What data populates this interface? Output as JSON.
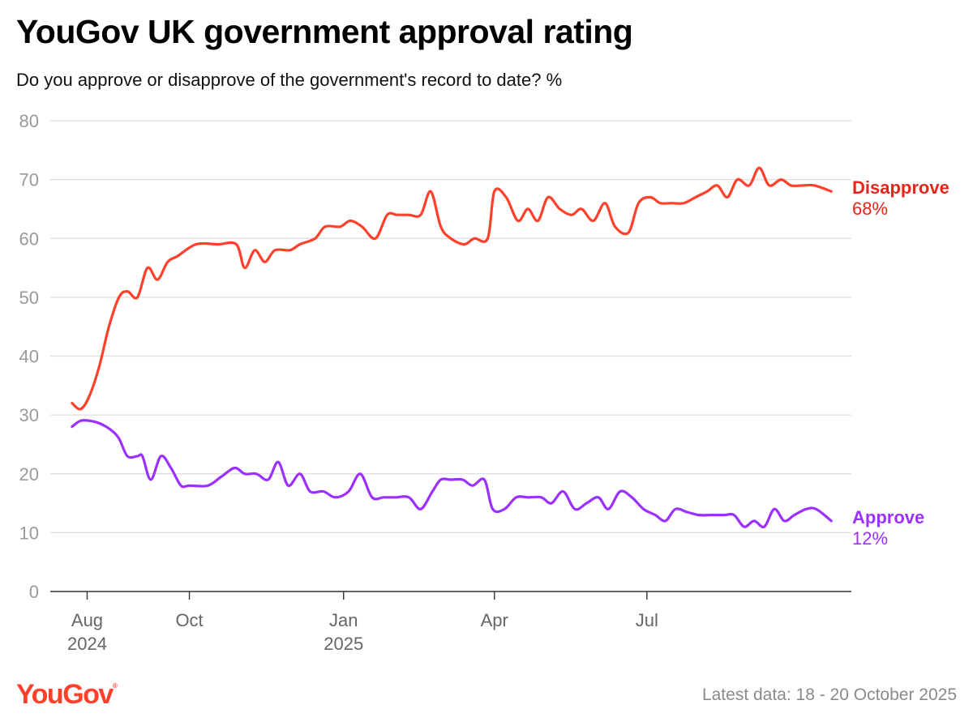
{
  "header": {
    "title": "YouGov UK government approval rating",
    "subtitle": "Do you approve or disapprove of the government's record to date? %"
  },
  "footer": {
    "brand": "YouGov",
    "note": "Latest data: 18 - 20 October 2025"
  },
  "colors": {
    "disapprove": "#ff412c",
    "disapprove_label": "#e4261b",
    "approve": "#9b30ff",
    "grid": "#dddddd",
    "tick": "#9a9a9a",
    "xtick": "#666666"
  },
  "chart_data": {
    "type": "line",
    "ylim": [
      0,
      80
    ],
    "yticks": [
      0,
      10,
      20,
      30,
      40,
      50,
      60,
      70,
      80
    ],
    "grid": true,
    "xlim": [
      "2024-07-10",
      "2025-10-31"
    ],
    "xticks": [
      {
        "date": "2024-08-01",
        "lines": [
          "Aug",
          "2024"
        ]
      },
      {
        "date": "2024-10-01",
        "lines": [
          "Oct"
        ]
      },
      {
        "date": "2025-01-01",
        "lines": [
          "Jan",
          "2025"
        ]
      },
      {
        "date": "2025-04-01",
        "lines": [
          "Apr"
        ]
      },
      {
        "date": "2025-07-01",
        "lines": [
          "Jul"
        ]
      }
    ],
    "series": [
      {
        "name": "Disapprove",
        "end_label": "68%",
        "points": [
          [
            "2024-07-23",
            32
          ],
          [
            "2024-07-28",
            31
          ],
          [
            "2024-08-02",
            33
          ],
          [
            "2024-08-08",
            38
          ],
          [
            "2024-08-14",
            45
          ],
          [
            "2024-08-20",
            50
          ],
          [
            "2024-08-25",
            51
          ],
          [
            "2024-08-31",
            50
          ],
          [
            "2024-09-06",
            55
          ],
          [
            "2024-09-12",
            53
          ],
          [
            "2024-09-18",
            56
          ],
          [
            "2024-09-24",
            57
          ],
          [
            "2024-10-05",
            59
          ],
          [
            "2024-10-18",
            59
          ],
          [
            "2024-10-29",
            59
          ],
          [
            "2024-11-03",
            55
          ],
          [
            "2024-11-09",
            58
          ],
          [
            "2024-11-15",
            56
          ],
          [
            "2024-11-21",
            58
          ],
          [
            "2024-11-30",
            58
          ],
          [
            "2024-12-06",
            59
          ],
          [
            "2024-12-15",
            60
          ],
          [
            "2024-12-21",
            62
          ],
          [
            "2024-12-30",
            62
          ],
          [
            "2025-01-05",
            63
          ],
          [
            "2025-01-12",
            62
          ],
          [
            "2025-01-20",
            60
          ],
          [
            "2025-01-27",
            64
          ],
          [
            "2025-02-02",
            64
          ],
          [
            "2025-02-09",
            64
          ],
          [
            "2025-02-16",
            64
          ],
          [
            "2025-02-22",
            68
          ],
          [
            "2025-02-28",
            62
          ],
          [
            "2025-03-06",
            60
          ],
          [
            "2025-03-14",
            59
          ],
          [
            "2025-03-20",
            60
          ],
          [
            "2025-03-28",
            60
          ],
          [
            "2025-04-01",
            68
          ],
          [
            "2025-04-08",
            67
          ],
          [
            "2025-04-15",
            63
          ],
          [
            "2025-04-21",
            65
          ],
          [
            "2025-04-27",
            63
          ],
          [
            "2025-05-03",
            67
          ],
          [
            "2025-05-10",
            65
          ],
          [
            "2025-05-17",
            64
          ],
          [
            "2025-05-23",
            65
          ],
          [
            "2025-05-30",
            63
          ],
          [
            "2025-06-06",
            66
          ],
          [
            "2025-06-12",
            62
          ],
          [
            "2025-06-20",
            61
          ],
          [
            "2025-06-26",
            66
          ],
          [
            "2025-07-03",
            67
          ],
          [
            "2025-07-09",
            66
          ],
          [
            "2025-07-16",
            66
          ],
          [
            "2025-07-23",
            66
          ],
          [
            "2025-07-30",
            67
          ],
          [
            "2025-08-06",
            68
          ],
          [
            "2025-08-12",
            69
          ],
          [
            "2025-08-18",
            67
          ],
          [
            "2025-08-24",
            70
          ],
          [
            "2025-08-31",
            69
          ],
          [
            "2025-09-06",
            72
          ],
          [
            "2025-09-12",
            69
          ],
          [
            "2025-09-19",
            70
          ],
          [
            "2025-09-25",
            69
          ],
          [
            "2025-10-02",
            69
          ],
          [
            "2025-10-09",
            69
          ],
          [
            "2025-10-19",
            68
          ]
        ]
      },
      {
        "name": "Approve",
        "end_label": "12%",
        "points": [
          [
            "2024-07-23",
            28
          ],
          [
            "2024-07-28",
            29
          ],
          [
            "2024-08-03",
            29
          ],
          [
            "2024-08-09",
            28.5
          ],
          [
            "2024-08-15",
            27.5
          ],
          [
            "2024-08-20",
            26
          ],
          [
            "2024-08-25",
            23
          ],
          [
            "2024-08-31",
            23
          ],
          [
            "2024-09-03",
            23
          ],
          [
            "2024-09-08",
            19
          ],
          [
            "2024-09-14",
            23
          ],
          [
            "2024-09-20",
            21
          ],
          [
            "2024-09-26",
            18
          ],
          [
            "2024-10-01",
            18
          ],
          [
            "2024-10-12",
            18
          ],
          [
            "2024-10-20",
            19.5
          ],
          [
            "2024-10-28",
            21
          ],
          [
            "2024-11-03",
            20
          ],
          [
            "2024-11-10",
            20
          ],
          [
            "2024-11-17",
            19
          ],
          [
            "2024-11-23",
            22
          ],
          [
            "2024-11-29",
            18
          ],
          [
            "2024-12-06",
            20
          ],
          [
            "2024-12-12",
            17
          ],
          [
            "2024-12-20",
            17
          ],
          [
            "2024-12-27",
            16
          ],
          [
            "2025-01-04",
            17
          ],
          [
            "2025-01-11",
            20
          ],
          [
            "2025-01-18",
            16
          ],
          [
            "2025-01-25",
            16
          ],
          [
            "2025-02-01",
            16
          ],
          [
            "2025-02-09",
            16
          ],
          [
            "2025-02-16",
            14
          ],
          [
            "2025-02-23",
            17
          ],
          [
            "2025-02-28",
            19
          ],
          [
            "2025-03-06",
            19
          ],
          [
            "2025-03-13",
            19
          ],
          [
            "2025-03-19",
            18
          ],
          [
            "2025-03-26",
            19
          ],
          [
            "2025-03-31",
            14
          ],
          [
            "2025-04-07",
            14
          ],
          [
            "2025-04-14",
            16
          ],
          [
            "2025-04-21",
            16
          ],
          [
            "2025-04-29",
            16
          ],
          [
            "2025-05-05",
            15
          ],
          [
            "2025-05-12",
            17
          ],
          [
            "2025-05-19",
            14
          ],
          [
            "2025-05-26",
            15
          ],
          [
            "2025-06-02",
            16
          ],
          [
            "2025-06-08",
            14
          ],
          [
            "2025-06-15",
            17
          ],
          [
            "2025-06-22",
            16
          ],
          [
            "2025-06-29",
            14
          ],
          [
            "2025-07-06",
            13
          ],
          [
            "2025-07-12",
            12
          ],
          [
            "2025-07-18",
            14
          ],
          [
            "2025-07-25",
            13.5
          ],
          [
            "2025-08-01",
            13
          ],
          [
            "2025-08-08",
            13
          ],
          [
            "2025-08-16",
            13
          ],
          [
            "2025-08-22",
            13
          ],
          [
            "2025-08-28",
            11
          ],
          [
            "2025-09-03",
            12
          ],
          [
            "2025-09-09",
            11
          ],
          [
            "2025-09-15",
            14
          ],
          [
            "2025-09-21",
            12
          ],
          [
            "2025-09-27",
            13
          ],
          [
            "2025-10-04",
            14
          ],
          [
            "2025-10-10",
            14
          ],
          [
            "2025-10-19",
            12
          ]
        ]
      }
    ]
  }
}
